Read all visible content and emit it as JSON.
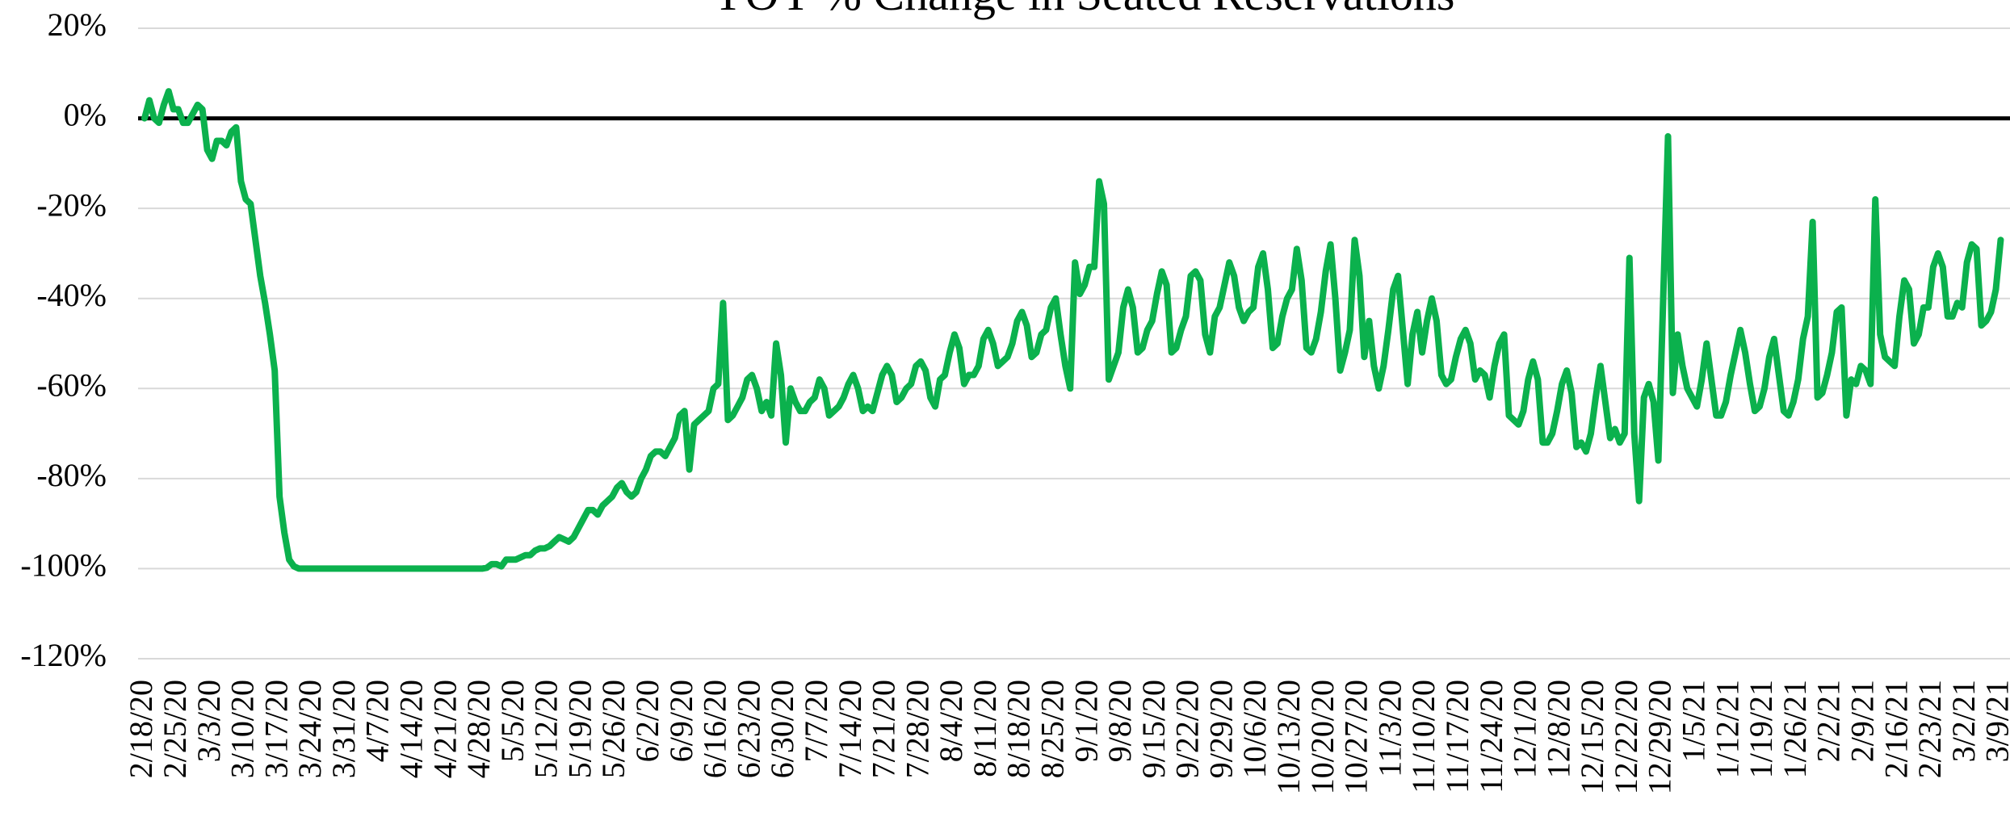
{
  "chart_data": {
    "type": "line",
    "title": "YOY % Change in Seated Reservations",
    "color": "#0bb14d",
    "grid": true,
    "ylim": [
      -120,
      20
    ],
    "yticks": [
      {
        "value": 20,
        "label": "20%"
      },
      {
        "value": 0,
        "label": "0%"
      },
      {
        "value": -20,
        "label": "-20%"
      },
      {
        "value": -40,
        "label": "-40%"
      },
      {
        "value": -60,
        "label": "-60%"
      },
      {
        "value": -80,
        "label": "-80%"
      },
      {
        "value": -100,
        "label": "-100%"
      },
      {
        "value": -120,
        "label": "-120%"
      }
    ],
    "categories": [
      "2/18/20",
      null,
      null,
      null,
      null,
      null,
      null,
      "2/25/20",
      null,
      null,
      null,
      null,
      null,
      null,
      "3/3/20",
      null,
      null,
      null,
      null,
      null,
      null,
      "3/10/20",
      null,
      null,
      null,
      null,
      null,
      null,
      "3/17/20",
      null,
      null,
      null,
      null,
      null,
      null,
      "3/24/20",
      null,
      null,
      null,
      null,
      null,
      null,
      "3/31/20",
      null,
      null,
      null,
      null,
      null,
      null,
      "4/7/20",
      null,
      null,
      null,
      null,
      null,
      null,
      "4/14/20",
      null,
      null,
      null,
      null,
      null,
      null,
      "4/21/20",
      null,
      null,
      null,
      null,
      null,
      null,
      "4/28/20",
      null,
      null,
      null,
      null,
      null,
      null,
      "5/5/20",
      null,
      null,
      null,
      null,
      null,
      null,
      "5/12/20",
      null,
      null,
      null,
      null,
      null,
      null,
      "5/19/20",
      null,
      null,
      null,
      null,
      null,
      null,
      "5/26/20",
      null,
      null,
      null,
      null,
      null,
      null,
      "6/2/20",
      null,
      null,
      null,
      null,
      null,
      null,
      "6/9/20",
      null,
      null,
      null,
      null,
      null,
      null,
      "6/16/20",
      null,
      null,
      null,
      null,
      null,
      null,
      "6/23/20",
      null,
      null,
      null,
      null,
      null,
      null,
      "6/30/20",
      null,
      null,
      null,
      null,
      null,
      null,
      "7/7/20",
      null,
      null,
      null,
      null,
      null,
      null,
      "7/14/20",
      null,
      null,
      null,
      null,
      null,
      null,
      "7/21/20",
      null,
      null,
      null,
      null,
      null,
      null,
      "7/28/20",
      null,
      null,
      null,
      null,
      null,
      null,
      "8/4/20",
      null,
      null,
      null,
      null,
      null,
      null,
      "8/11/20",
      null,
      null,
      null,
      null,
      null,
      null,
      "8/18/20",
      null,
      null,
      null,
      null,
      null,
      null,
      "8/25/20",
      null,
      null,
      null,
      null,
      null,
      null,
      "9/1/20",
      null,
      null,
      null,
      null,
      null,
      null,
      "9/8/20",
      null,
      null,
      null,
      null,
      null,
      null,
      "9/15/20",
      null,
      null,
      null,
      null,
      null,
      null,
      "9/22/20",
      null,
      null,
      null,
      null,
      null,
      null,
      "9/29/20",
      null,
      null,
      null,
      null,
      null,
      null,
      "10/6/20",
      null,
      null,
      null,
      null,
      null,
      null,
      "10/13/20",
      null,
      null,
      null,
      null,
      null,
      null,
      "10/20/20",
      null,
      null,
      null,
      null,
      null,
      null,
      "10/27/20",
      null,
      null,
      null,
      null,
      null,
      null,
      "11/3/20",
      null,
      null,
      null,
      null,
      null,
      null,
      "11/10/20",
      null,
      null,
      null,
      null,
      null,
      null,
      "11/17/20",
      null,
      null,
      null,
      null,
      null,
      null,
      "11/24/20",
      null,
      null,
      null,
      null,
      null,
      null,
      "12/1/20",
      null,
      null,
      null,
      null,
      null,
      null,
      "12/8/20",
      null,
      null,
      null,
      null,
      null,
      null,
      "12/15/20",
      null,
      null,
      null,
      null,
      null,
      null,
      "12/22/20",
      null,
      null,
      null,
      null,
      null,
      null,
      "12/29/20",
      null,
      null,
      null,
      null,
      null,
      null,
      "1/5/21",
      null,
      null,
      null,
      null,
      null,
      null,
      "1/12/21",
      null,
      null,
      null,
      null,
      null,
      null,
      "1/19/21",
      null,
      null,
      null,
      null,
      null,
      null,
      "1/26/21",
      null,
      null,
      null,
      null,
      null,
      null,
      "2/2/21",
      null,
      null,
      null,
      null,
      null,
      null,
      "2/9/21",
      null,
      null,
      null,
      null,
      null,
      null,
      "2/16/21",
      null,
      null,
      null,
      null,
      null,
      null,
      "2/23/21",
      null,
      null,
      null,
      null,
      null,
      null,
      "3/2/21",
      null,
      null,
      null,
      null,
      null,
      null,
      "3/9/21"
    ],
    "values": [
      0,
      4,
      0,
      -1,
      3,
      6,
      2,
      2,
      -1,
      -1,
      1,
      3,
      2,
      -7,
      -9,
      -5,
      -5,
      -6,
      -3,
      -2,
      -14,
      -18,
      -19,
      -27,
      -35,
      -41,
      -48,
      -56,
      -84,
      -92,
      -98,
      -99.5,
      -100,
      -100,
      -100,
      -100,
      -100,
      -100,
      -100,
      -100,
      -100,
      -100,
      -100,
      -100,
      -100,
      -100,
      -100,
      -100,
      -100,
      -100,
      -100,
      -100,
      -100,
      -100,
      -100,
      -100,
      -100,
      -100,
      -100,
      -100,
      -100,
      -100,
      -100,
      -100,
      -100,
      -100,
      -100,
      -100,
      -100,
      -100,
      -100,
      -99.8,
      -99,
      -99,
      -99.5,
      -98,
      -98,
      -98,
      -97.5,
      -97,
      -97,
      -96,
      -95.5,
      -95.5,
      -95,
      -94,
      -93,
      -93.5,
      -94,
      -93,
      -91,
      -89,
      -87,
      -87,
      -88,
      -86,
      -85,
      -84,
      -82,
      -81,
      -83,
      -84,
      -83,
      -80,
      -78,
      -75,
      -74,
      -74,
      -75,
      -73,
      -71,
      -66,
      -65,
      -78,
      -68,
      -67,
      -66,
      -65,
      -60,
      -59,
      -41,
      -67,
      -66,
      -64,
      -62,
      -58,
      -57,
      -60,
      -65,
      -63,
      -66,
      -50,
      -57,
      -72,
      -60,
      -63,
      -65,
      -65,
      -63,
      -62,
      -58,
      -60,
      -66,
      -65,
      -64,
      -62,
      -59,
      -57,
      -60,
      -65,
      -64,
      -65,
      -61,
      -57,
      -55,
      -57,
      -63,
      -62,
      -60,
      -59,
      -55,
      -54,
      -56,
      -62,
      -64,
      -58,
      -57,
      -52,
      -48,
      -51,
      -59,
      -57,
      -57,
      -55,
      -49,
      -47,
      -50,
      -55,
      -54,
      -53,
      -50,
      -45,
      -43,
      -46,
      -53,
      -52,
      -48,
      -47,
      -42,
      -40,
      -48,
      -55,
      -60,
      -32,
      -39,
      -37,
      -33,
      -33,
      -14,
      -19,
      -58,
      -55,
      -52,
      -42,
      -38,
      -42,
      -52,
      -51,
      -47,
      -45,
      -39,
      -34,
      -37,
      -52,
      -51,
      -47,
      -44,
      -35,
      -34,
      -36,
      -48,
      -52,
      -44,
      -42,
      -37,
      -32,
      -35,
      -42,
      -45,
      -43,
      -42,
      -33,
      -30,
      -38,
      -51,
      -50,
      -44,
      -40,
      -38,
      -29,
      -36,
      -51,
      -52,
      -49,
      -43,
      -34,
      -28,
      -40,
      -56,
      -52,
      -47,
      -27,
      -35,
      -53,
      -45,
      -55,
      -60,
      -55,
      -47,
      -38,
      -35,
      -47,
      -59,
      -48,
      -43,
      -52,
      -45,
      -40,
      -45,
      -57,
      -59,
      -58,
      -53,
      -49,
      -47,
      -50,
      -58,
      -56,
      -57,
      -62,
      -55,
      -50,
      -48,
      -66,
      -67,
      -68,
      -65,
      -58,
      -54,
      -58,
      -72,
      -72,
      -70,
      -65,
      -59,
      -56,
      -61,
      -73,
      -72,
      -74,
      -70,
      -62,
      -55,
      -63,
      -71,
      -69,
      -72,
      -70,
      -31,
      -70,
      -85,
      -62,
      -59,
      -63,
      -76,
      -40,
      -4,
      -61,
      -48,
      -55,
      -60,
      -62,
      -64,
      -58,
      -50,
      -58,
      -66,
      -66,
      -63,
      -57,
      -52,
      -47,
      -52,
      -59,
      -65,
      -64,
      -60,
      -53,
      -49,
      -57,
      -65,
      -66,
      -63,
      -58,
      -49,
      -44,
      -23,
      -62,
      -61,
      -57,
      -52,
      -43,
      -42,
      -66,
      -58,
      -59,
      -55,
      -56,
      -59,
      -18,
      -48,
      -53,
      -54,
      -55,
      -44,
      -36,
      -38,
      -50,
      -48,
      -42,
      -42,
      -33,
      -30,
      -33,
      -44,
      -44,
      -41,
      -42,
      -32,
      -28,
      -29,
      -46,
      -45,
      -43,
      -38,
      -27
    ]
  }
}
